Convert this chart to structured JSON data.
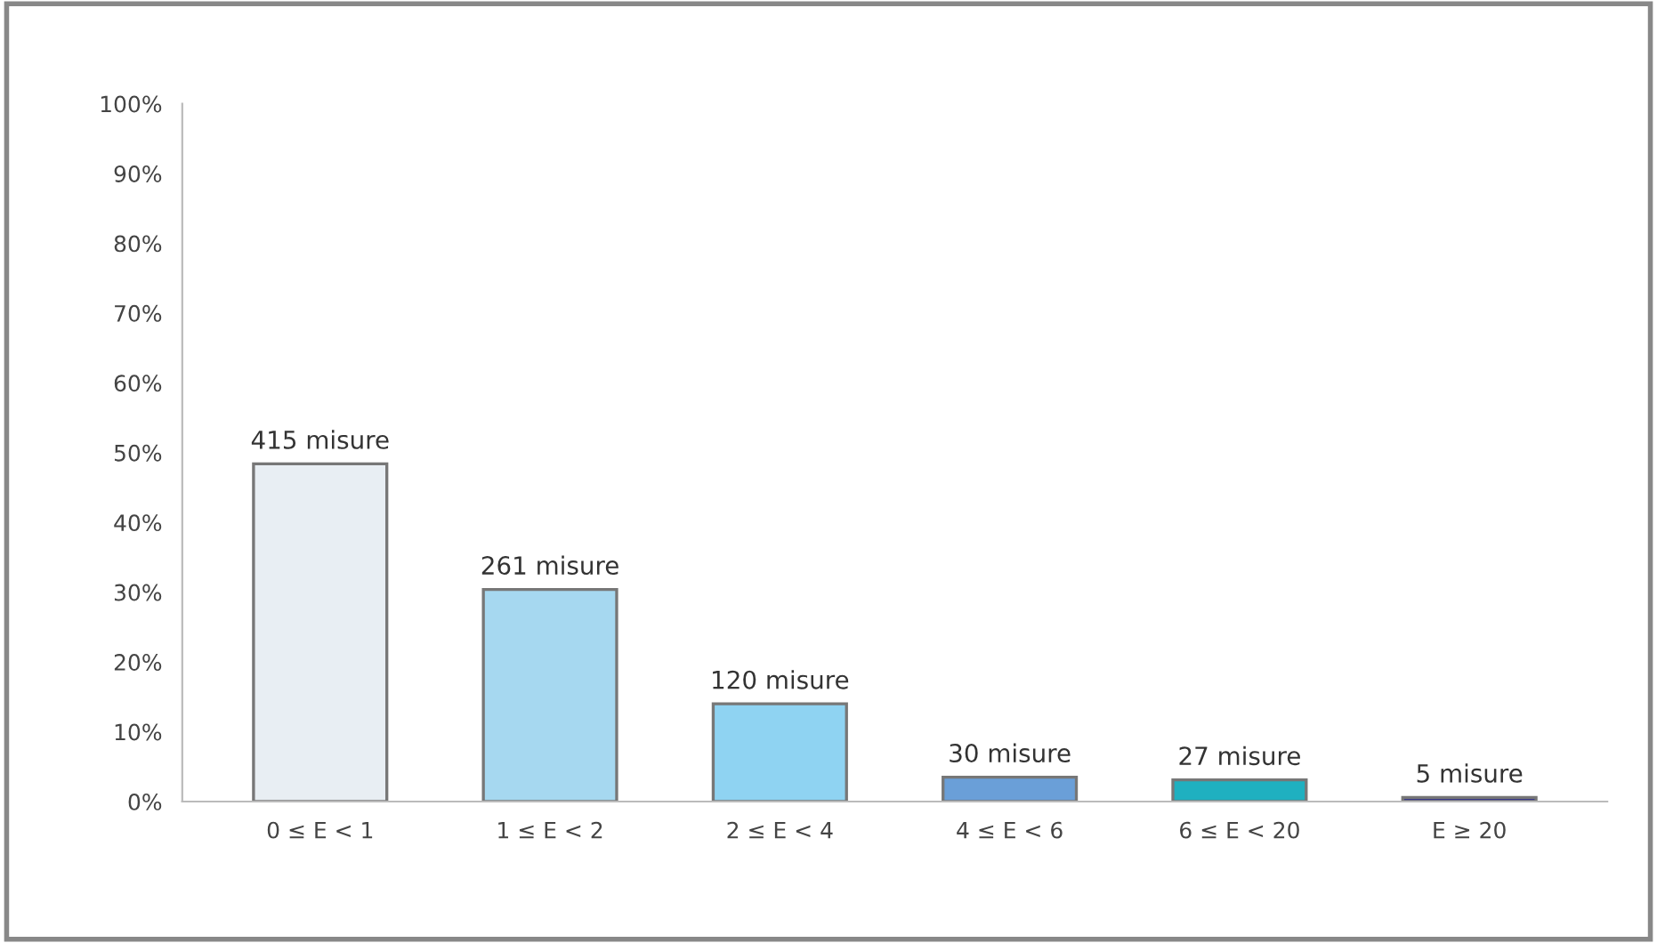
{
  "chart_data": {
    "type": "bar",
    "categories": [
      "0 ≤ E < 1",
      "1 ≤ E < 2",
      "2 ≤ E < 4",
      "4 ≤ E < 6",
      "6 ≤ E < 20",
      "E ≥ 20"
    ],
    "values": [
      48.4,
      30.4,
      14.0,
      3.5,
      3.1,
      0.6
    ],
    "colors": [
      "#e8eef3",
      "#a6d8f0",
      "#8fd3f2",
      "#6a9fd8",
      "#1fb0c0",
      "#3a3a8a"
    ],
    "annotations": [
      {
        "text": "415 misure",
        "x": "0 ≤ E < 1",
        "y": 48.4
      },
      {
        "text": "261 misure",
        "x": "1 ≤ E < 2",
        "y": 30.4
      },
      {
        "text": "120 misure",
        "x": "2 ≤ E < 4",
        "y": 14.0
      },
      {
        "text": "30 misure",
        "x": "4 ≤ E < 6",
        "y": 3.5
      },
      {
        "text": "27 misure",
        "x": "6 ≤ E < 20",
        "y": 3.1
      },
      {
        "text": "5 misure",
        "x": "E ≥ 20",
        "y": 0.6
      }
    ],
    "ylim": [
      0,
      100
    ],
    "yticks": [
      {
        "value": 0,
        "label": "0%"
      },
      {
        "value": 10,
        "label": "10%"
      },
      {
        "value": 20,
        "label": "20%"
      },
      {
        "value": 30,
        "label": "30%"
      },
      {
        "value": 40,
        "label": "40%"
      },
      {
        "value": 50,
        "label": "50%"
      },
      {
        "value": 60,
        "label": "60%"
      },
      {
        "value": 70,
        "label": "70%"
      },
      {
        "value": 80,
        "label": "80%"
      },
      {
        "value": 90,
        "label": "90%"
      },
      {
        "value": 100,
        "label": "100%"
      }
    ],
    "grid": false,
    "legend": false
  }
}
